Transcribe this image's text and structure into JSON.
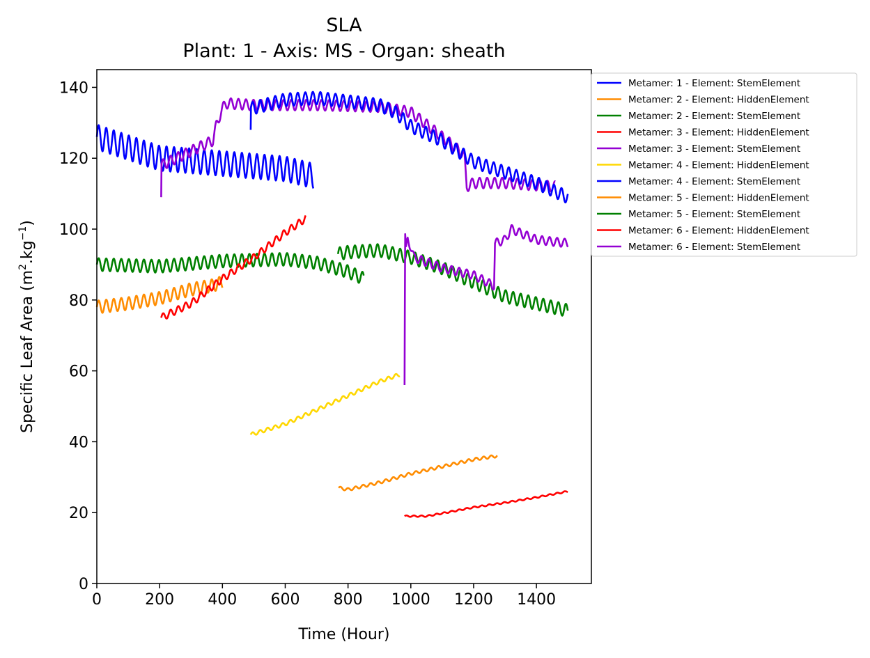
{
  "chart_data": {
    "type": "line",
    "title": "SLA",
    "subtitle": "Plant: 1 - Axis: MS - Organ: sheath",
    "xlabel": "Time (Hour)",
    "ylabel_main": "Specific Leaf Area (m",
    "ylabel_sup1": "2",
    "ylabel_mid": ".kg",
    "ylabel_sup2": "−1",
    "ylabel_end": ")",
    "xlim": [
      0,
      1575
    ],
    "ylim": [
      0,
      145
    ],
    "x_ticks": [
      0,
      200,
      400,
      600,
      800,
      1000,
      1200,
      1400
    ],
    "y_ticks": [
      0,
      20,
      40,
      60,
      80,
      100,
      120,
      140
    ],
    "legend_position": "outside-top-right",
    "series": [
      {
        "name": "Metamer: 1 - Element: StemElement",
        "color": "#0000ff",
        "x": [
          0,
          200,
          400,
          600,
          690
        ],
        "y": [
          126,
          120,
          118.5,
          117,
          115
        ],
        "osc": 3.5,
        "period": 24
      },
      {
        "name": "Metamer: 2 - Element: HiddenElement",
        "color": "#ff8c00",
        "x": [
          0,
          100,
          200,
          300,
          365,
          400
        ],
        "y": [
          78,
          79,
          80.5,
          83,
          84,
          85
        ],
        "osc": 1.8,
        "period": 24
      },
      {
        "name": "Metamer: 2 - Element: StemElement",
        "color": "#008000",
        "x": [
          0,
          200,
          400,
          600,
          700,
          800,
          850
        ],
        "y": [
          90,
          89.5,
          91,
          91.5,
          90.5,
          88,
          86
        ],
        "osc": 1.8,
        "period": 24
      },
      {
        "name": "Metamer: 3 - Element: HiddenElement",
        "color": "#ff0000",
        "x": [
          205,
          300,
          400,
          500,
          600,
          665
        ],
        "y": [
          75,
          79,
          86,
          92,
          99,
          103
        ],
        "osc": 1.0,
        "period": 24
      },
      {
        "name": "Metamer: 3 - Element: StemElement",
        "color": "#9400d3",
        "x": [
          205,
          206,
          300,
          370,
          380,
          395,
          410,
          500,
          700,
          900,
          1000,
          1100,
          1170,
          1178,
          1200,
          1300,
          1460
        ],
        "y": [
          109,
          118,
          122,
          125,
          129,
          133,
          135.5,
          135,
          135,
          134.5,
          133,
          126,
          121,
          112,
          113,
          113,
          112
        ],
        "osc": 1.5,
        "period": 24
      },
      {
        "name": "Metamer: 4 - Element: HiddenElement",
        "color": "#ffd700",
        "x": [
          490,
          600,
          700,
          800,
          900,
          965
        ],
        "y": [
          42,
          45,
          49,
          53,
          57,
          59
        ],
        "osc": 0.5,
        "period": 24
      },
      {
        "name": "Metamer: 4 - Element: StemElement",
        "color": "#0000ff",
        "x": [
          490,
          491,
          600,
          700,
          800,
          900,
          950,
          1000,
          1100,
          1200,
          1300,
          1400,
          1500
        ],
        "y": [
          128,
          134,
          136.5,
          137,
          136,
          135,
          133,
          129,
          125,
          119,
          116,
          113,
          109
        ],
        "osc": 1.8,
        "period": 24
      },
      {
        "name": "Metamer: 5 - Element: HiddenElement",
        "color": "#ff8c00",
        "x": [
          770,
          800,
          900,
          1000,
          1100,
          1200,
          1275
        ],
        "y": [
          27,
          26.5,
          28.5,
          31,
          33,
          35,
          36
        ],
        "osc": 0.4,
        "period": 24
      },
      {
        "name": "Metamer: 5 - Element: StemElement",
        "color": "#008000",
        "x": [
          768,
          800,
          900,
          1000,
          1100,
          1200,
          1300,
          1400,
          1500
        ],
        "y": [
          93,
          93.5,
          94,
          92,
          89,
          85,
          81,
          79,
          77
        ],
        "osc": 1.8,
        "period": 24
      },
      {
        "name": "Metamer: 6 - Element: HiddenElement",
        "color": "#ff0000",
        "x": [
          980,
          1050,
          1100,
          1200,
          1300,
          1400,
          1500
        ],
        "y": [
          19,
          19,
          19.8,
          21.5,
          22.8,
          24.3,
          26
        ],
        "osc": 0.2,
        "period": 24
      },
      {
        "name": "Metamer: 6 - Element: StemElement",
        "color": "#9400d3",
        "x": [
          980,
          982,
          985,
          990,
          1000,
          1010,
          1100,
          1200,
          1265,
          1268,
          1300,
          1320,
          1400,
          1500
        ],
        "y": [
          56,
          98,
          94,
          97,
          95,
          92,
          89,
          87,
          84,
          96,
          97,
          100,
          97,
          96
        ],
        "osc": 1.2,
        "period": 24
      }
    ]
  }
}
